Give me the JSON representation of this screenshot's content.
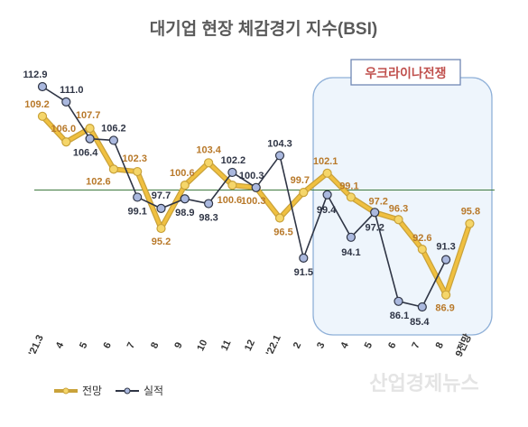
{
  "chart_data": {
    "type": "line",
    "title": "대기업 현장 체감경기 지수(BSI)",
    "categories": [
      "'21.3",
      "4",
      "5",
      "6",
      "7",
      "8",
      "9",
      "10",
      "11",
      "12",
      "'22.1",
      "2",
      "3",
      "4",
      "5",
      "6",
      "7",
      "8",
      "9전망"
    ],
    "series": [
      {
        "name": "전망",
        "color": "#f0c040",
        "values": [
          109.2,
          106.0,
          107.7,
          102.6,
          102.3,
          95.2,
          100.6,
          103.4,
          100.6,
          100.3,
          96.5,
          99.7,
          102.1,
          99.1,
          97.2,
          96.3,
          92.6,
          86.9,
          95.8
        ]
      },
      {
        "name": "실적",
        "color": "#2f3545",
        "values": [
          112.9,
          111.0,
          106.4,
          106.2,
          99.1,
          97.7,
          98.9,
          98.3,
          102.2,
          100.3,
          104.3,
          91.5,
          99.4,
          94.1,
          97.2,
          86.1,
          85.4,
          91.3,
          null
        ]
      }
    ],
    "forecast_labels": [
      "109.2",
      "106.0",
      "107.7",
      "102.6",
      "102.3",
      "95.2",
      "100.6",
      "103.4",
      "100.6",
      "100.3",
      "96.5",
      "99.7",
      "102.1",
      "99.1",
      "97.2",
      "96.3",
      "92.6",
      "86.9",
      "95.8"
    ],
    "actual_labels": [
      "112.9",
      "111.0",
      "106.4",
      "106.2",
      "99.1",
      "97.7",
      "98.9",
      "98.3",
      "102.2",
      "100.3",
      "104.3",
      "91.5",
      "99.4",
      "94.1",
      "97.2",
      "86.1",
      "85.4",
      "91.3"
    ],
    "reference_line": 100,
    "ylim": [
      80,
      116
    ],
    "annotation": "우크라이나전쟁",
    "legend_position": "bottom-left"
  },
  "watermark": "산업경제뉴스"
}
